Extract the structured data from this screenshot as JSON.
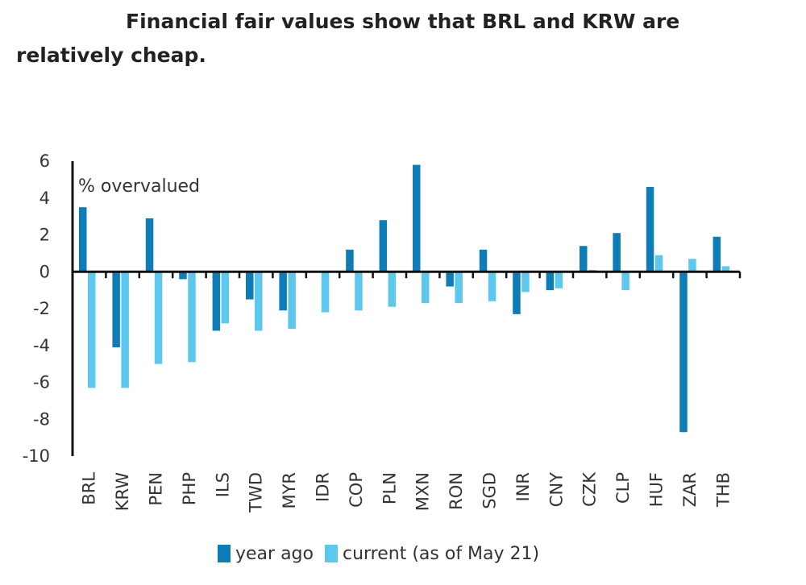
{
  "chart_data": {
    "type": "bar",
    "title": "Financial fair values show that BRL and KRW are relatively cheap.",
    "annotation": "% overvalued",
    "ylim": [
      -10,
      6
    ],
    "yticks": [
      6,
      4,
      2,
      0,
      -2,
      -4,
      -6,
      -8,
      -10
    ],
    "categories": [
      "BRL",
      "KRW",
      "PEN",
      "PHP",
      "ILS",
      "TWD",
      "MYR",
      "IDR",
      "COP",
      "PLN",
      "MXN",
      "RON",
      "SGD",
      "INR",
      "CNY",
      "CZK",
      "CLP",
      "HUF",
      "ZAR",
      "THB"
    ],
    "series": [
      {
        "name": "year ago",
        "color": "#0e7db7",
        "values": [
          3.5,
          -4.1,
          2.9,
          -0.4,
          -3.2,
          -1.5,
          -2.1,
          0.0,
          1.2,
          2.8,
          5.8,
          -0.8,
          1.2,
          -2.3,
          -1.0,
          1.4,
          2.1,
          4.6,
          -8.7,
          1.9
        ]
      },
      {
        "name": "current (as of May 21)",
        "color": "#5cc8ee",
        "values": [
          -6.3,
          -6.3,
          -5.0,
          -4.9,
          -2.8,
          -3.2,
          -3.1,
          -2.2,
          -2.1,
          -1.9,
          -1.7,
          -1.7,
          -1.6,
          -1.1,
          -0.9,
          0.1,
          -1.0,
          0.9,
          0.7,
          0.3
        ]
      }
    ]
  }
}
